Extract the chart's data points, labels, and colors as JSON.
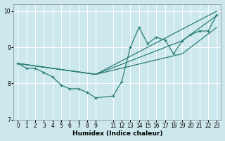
{
  "xlabel": "Humidex (Indice chaleur)",
  "xlim": [
    -0.5,
    23.5
  ],
  "ylim": [
    7,
    10.2
  ],
  "yticks": [
    7,
    8,
    9,
    10
  ],
  "xtick_positions": [
    0,
    1,
    2,
    3,
    4,
    5,
    6,
    7,
    8,
    9,
    11,
    12,
    13,
    14,
    15,
    16,
    17,
    18,
    19,
    20,
    21,
    22,
    23
  ],
  "xtick_labels": [
    "0",
    "1",
    "2",
    "3",
    "4",
    "5",
    "6",
    "7",
    "8",
    "9",
    "11",
    "12",
    "13",
    "14",
    "15",
    "16",
    "17",
    "18",
    "19",
    "20",
    "21",
    "22",
    "23"
  ],
  "bg_color": "#cce8ec",
  "grid_color": "#ffffff",
  "line_color": "#2a7d78",
  "lines": [
    {
      "x": [
        0,
        1,
        2,
        3,
        4,
        5,
        6,
        7,
        8,
        9,
        11,
        12,
        13,
        14,
        15,
        16,
        17,
        18,
        19,
        20,
        21,
        22,
        23
      ],
      "y": [
        8.55,
        8.42,
        8.42,
        8.3,
        8.18,
        7.95,
        7.85,
        7.85,
        7.75,
        7.6,
        7.65,
        8.05,
        9.0,
        9.55,
        9.1,
        9.28,
        9.2,
        8.82,
        9.18,
        9.35,
        9.45,
        9.45,
        9.9
      ],
      "marker": "+"
    },
    {
      "x": [
        0,
        9,
        23
      ],
      "y": [
        8.55,
        8.25,
        10.0
      ],
      "marker": null
    },
    {
      "x": [
        0,
        9,
        19,
        23
      ],
      "y": [
        8.55,
        8.25,
        9.18,
        9.88
      ],
      "marker": null
    },
    {
      "x": [
        0,
        9,
        19,
        23
      ],
      "y": [
        8.55,
        8.25,
        8.82,
        9.55
      ],
      "marker": null
    }
  ]
}
